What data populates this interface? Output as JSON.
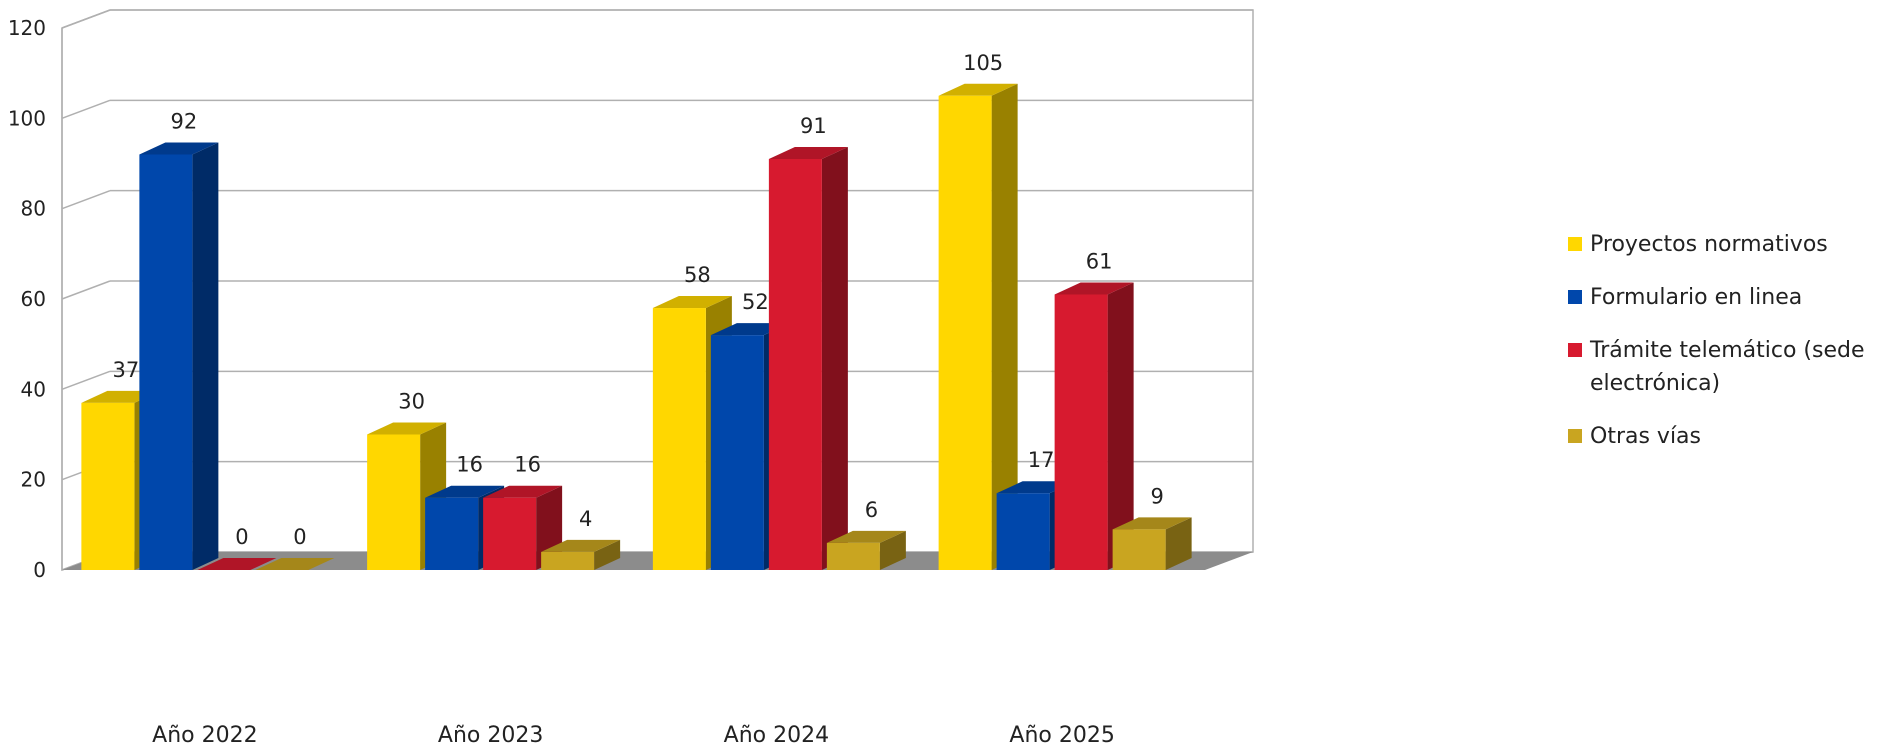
{
  "chart_data": {
    "type": "bar",
    "categories": [
      "Año 2022",
      "Año 2023",
      "Año 2024",
      "Año 2025"
    ],
    "series": [
      {
        "name": "Proyectos normativos",
        "values": [
          37,
          30,
          58,
          105
        ],
        "color": "#FFD700"
      },
      {
        "name": "Formulario en linea",
        "values": [
          92,
          16,
          52,
          17
        ],
        "color": "#0047AB"
      },
      {
        "name": "Trámite telemático (sede electrónica)",
        "values": [
          0,
          16,
          91,
          61
        ],
        "color": "#D71A2F"
      },
      {
        "name": "Otras vías",
        "values": [
          0,
          4,
          6,
          9
        ],
        "color": "#C9A520"
      }
    ],
    "ylim": [
      0,
      120
    ],
    "yticks": [
      "0",
      "20",
      "40",
      "60",
      "80",
      "100",
      "120"
    ],
    "grid": true,
    "legend_position": "right",
    "style": "3d"
  }
}
